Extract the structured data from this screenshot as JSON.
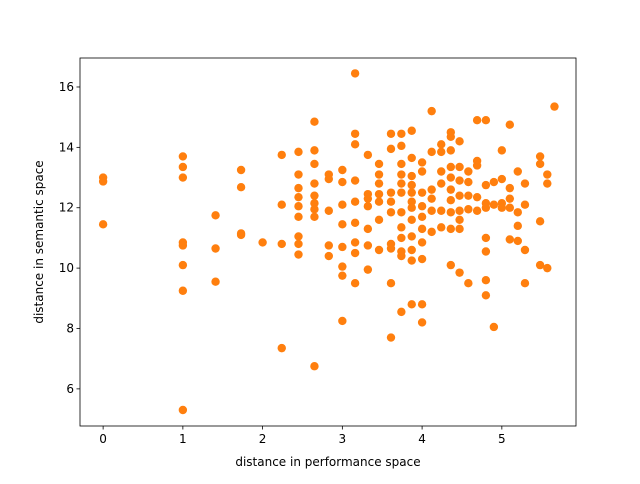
{
  "chart_data": {
    "type": "scatter",
    "x_label": "distance in performance space",
    "y_label": "distance in semantic space",
    "color": "#ff7f0e",
    "xlim": [
      -0.29,
      5.93
    ],
    "ylim": [
      4.77,
      16.96
    ],
    "xticks": [
      0,
      1,
      2,
      3,
      4,
      5
    ],
    "yticks": [
      6,
      8,
      10,
      12,
      14,
      16
    ],
    "x": [
      0,
      0,
      0,
      1,
      1,
      1,
      1,
      1,
      1,
      1,
      1,
      1.41,
      1.41,
      1.41,
      1.73,
      1.73,
      1.73,
      1.73,
      2,
      2.24,
      2.24,
      2.24,
      2.24,
      2.45,
      2.45,
      2.45,
      2.45,
      2.45,
      2.45,
      2.45,
      2.45,
      2.45,
      2.65,
      2.65,
      2.65,
      2.65,
      2.65,
      2.65,
      2.65,
      2.65,
      2.65,
      2.83,
      2.83,
      2.83,
      2.83,
      2.83,
      3,
      3,
      3,
      3,
      3,
      3,
      3,
      3,
      3.16,
      3.16,
      3.16,
      3.16,
      3.16,
      3.16,
      3.16,
      3.16,
      3.16,
      3.32,
      3.32,
      3.32,
      3.32,
      3.32,
      3.32,
      3.32,
      3.46,
      3.46,
      3.46,
      3.46,
      3.46,
      3.46,
      3.46,
      3.61,
      3.61,
      3.61,
      3.61,
      3.61,
      3.61,
      3.61,
      3.61,
      3.61,
      3.74,
      3.74,
      3.74,
      3.74,
      3.74,
      3.74,
      3.74,
      3.74,
      3.74,
      3.74,
      3.74,
      3.74,
      3.87,
      3.87,
      3.87,
      3.87,
      3.87,
      3.87,
      3.87,
      3.87,
      3.87,
      3.87,
      3.87,
      3.87,
      4,
      4,
      4,
      4,
      4,
      4,
      4,
      4,
      4,
      4,
      4.12,
      4.12,
      4.12,
      4.12,
      4.12,
      4.12,
      4.24,
      4.24,
      4.24,
      4.24,
      4.24,
      4.24,
      4.36,
      4.36,
      4.36,
      4.36,
      4.36,
      4.36,
      4.36,
      4.36,
      4.36,
      4.36,
      4.47,
      4.47,
      4.47,
      4.47,
      4.47,
      4.47,
      4.47,
      4.47,
      4.58,
      4.58,
      4.58,
      4.58,
      4.58,
      4.69,
      4.69,
      4.69,
      4.69,
      4.69,
      4.8,
      4.8,
      4.8,
      4.8,
      4.8,
      4.8,
      4.8,
      4.8,
      4.9,
      4.9,
      4.9,
      5,
      5,
      5,
      5,
      5.1,
      5.1,
      5.1,
      5.1,
      5.1,
      5.2,
      5.2,
      5.2,
      5.2,
      5.29,
      5.29,
      5.29,
      5.29,
      5.48,
      5.48,
      5.48,
      5.48,
      5.57,
      5.57,
      5.57,
      5.66
    ],
    "values": [
      13.0,
      12.87,
      11.45,
      13.7,
      13.35,
      13.0,
      10.85,
      10.75,
      10.1,
      9.25,
      5.3,
      11.75,
      10.65,
      9.55,
      13.25,
      12.68,
      11.15,
      11.1,
      10.85,
      13.75,
      12.1,
      10.8,
      7.35,
      13.85,
      13.1,
      12.65,
      12.35,
      12.05,
      11.7,
      11.05,
      10.8,
      10.45,
      14.85,
      13.9,
      13.45,
      12.8,
      12.4,
      12.15,
      11.95,
      11.7,
      6.75,
      13.1,
      12.95,
      11.9,
      10.75,
      10.4,
      13.25,
      12.85,
      12.1,
      11.45,
      10.7,
      10.05,
      9.75,
      8.25,
      16.45,
      14.45,
      14.1,
      12.9,
      12.2,
      11.5,
      10.85,
      10.5,
      9.5,
      13.75,
      12.45,
      12.3,
      12.05,
      11.3,
      10.75,
      9.95,
      13.45,
      13.1,
      12.8,
      12.45,
      12.2,
      11.6,
      10.6,
      14.45,
      13.95,
      12.5,
      12.2,
      11.85,
      10.8,
      10.65,
      9.5,
      7.7,
      14.45,
      14.05,
      13.45,
      13.1,
      12.8,
      12.5,
      11.85,
      11.35,
      11.0,
      10.55,
      10.4,
      8.55,
      14.55,
      13.65,
      13.05,
      12.75,
      12.5,
      12.2,
      12.0,
      11.6,
      11.05,
      10.6,
      10.25,
      8.8,
      13.5,
      13.2,
      12.5,
      12.05,
      11.7,
      11.3,
      10.85,
      10.3,
      8.8,
      8.2,
      15.2,
      13.85,
      12.6,
      12.3,
      11.9,
      11.2,
      14.1,
      13.85,
      13.2,
      12.8,
      11.9,
      11.35,
      14.5,
      14.35,
      13.9,
      13.35,
      13.0,
      12.6,
      12.25,
      11.85,
      11.3,
      10.1,
      14.2,
      13.35,
      12.9,
      12.4,
      11.9,
      11.6,
      11.3,
      9.85,
      13.2,
      12.85,
      12.4,
      11.95,
      9.5,
      14.9,
      13.55,
      13.4,
      12.35,
      11.9,
      14.9,
      12.75,
      12.15,
      12.0,
      11.0,
      10.55,
      9.6,
      9.1,
      12.85,
      12.1,
      8.05,
      13.9,
      12.95,
      12.15,
      12.0,
      14.75,
      12.65,
      12.3,
      12.0,
      10.95,
      13.2,
      11.85,
      11.4,
      10.9,
      12.8,
      12.1,
      10.6,
      9.5,
      13.7,
      13.45,
      11.55,
      10.1,
      13.1,
      12.8,
      10.0,
      15.35
    ]
  }
}
